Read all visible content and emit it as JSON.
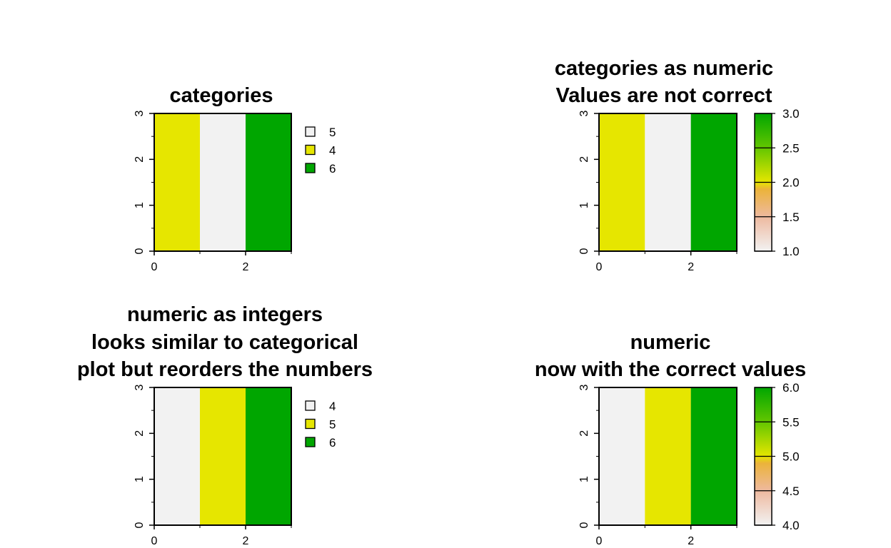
{
  "chart_data": [
    {
      "type": "heatmap",
      "panel": "top-left",
      "title_lines": [
        "categories"
      ],
      "x_ticks": [
        "0",
        "2"
      ],
      "y_ticks": [
        "0",
        "1",
        "2",
        "3"
      ],
      "xlim": [
        0,
        3
      ],
      "ylim": [
        0,
        3
      ],
      "columns": [
        {
          "x": [
            0,
            1
          ],
          "label": "4",
          "color": "#E6E600"
        },
        {
          "x": [
            1,
            2
          ],
          "label": "5",
          "color": "#F2F2F2"
        },
        {
          "x": [
            2,
            3
          ],
          "label": "6",
          "color": "#00A600"
        }
      ],
      "legend": {
        "kind": "categorical",
        "items": [
          {
            "label": "5",
            "color": "#F2F2F2"
          },
          {
            "label": "4",
            "color": "#E6E600"
          },
          {
            "label": "6",
            "color": "#00A600"
          }
        ]
      }
    },
    {
      "type": "heatmap",
      "panel": "top-right",
      "title_lines": [
        "categories as numeric",
        "Values are not correct"
      ],
      "x_ticks": [
        "0",
        "2"
      ],
      "y_ticks": [
        "0",
        "1",
        "2",
        "3"
      ],
      "xlim": [
        0,
        3
      ],
      "ylim": [
        0,
        3
      ],
      "columns": [
        {
          "x": [
            0,
            1
          ],
          "value": 2,
          "color": "#E6E600"
        },
        {
          "x": [
            1,
            2
          ],
          "value": 1,
          "color": "#F2F2F2"
        },
        {
          "x": [
            2,
            3
          ],
          "value": 3,
          "color": "#00A600"
        }
      ],
      "legend": {
        "kind": "continuous",
        "range": [
          1,
          3
        ],
        "ticks": [
          "1.0",
          "1.5",
          "2.0",
          "2.5",
          "3.0"
        ],
        "tick_values": [
          1.0,
          1.5,
          2.0,
          2.5,
          3.0
        ],
        "gradient": [
          {
            "stop": 0.0,
            "color": "#F2F2F2"
          },
          {
            "stop": 0.25,
            "color": "#EEB99F"
          },
          {
            "stop": 0.45,
            "color": "#EBB33A"
          },
          {
            "stop": 0.5,
            "color": "#E6E600"
          },
          {
            "stop": 0.75,
            "color": "#63C600"
          },
          {
            "stop": 1.0,
            "color": "#00A600"
          }
        ]
      }
    },
    {
      "type": "heatmap",
      "panel": "bottom-left",
      "title_lines": [
        "numeric as integers",
        "looks similar to categorical",
        "plot but reorders the numbers"
      ],
      "x_ticks": [
        "0",
        "2"
      ],
      "y_ticks": [
        "0",
        "1",
        "2",
        "3"
      ],
      "xlim": [
        0,
        3
      ],
      "ylim": [
        0,
        3
      ],
      "columns": [
        {
          "x": [
            0,
            1
          ],
          "label": "4",
          "color": "#F2F2F2"
        },
        {
          "x": [
            1,
            2
          ],
          "label": "5",
          "color": "#E6E600"
        },
        {
          "x": [
            2,
            3
          ],
          "label": "6",
          "color": "#00A600"
        }
      ],
      "legend": {
        "kind": "categorical",
        "items": [
          {
            "label": "4",
            "color": "#F2F2F2"
          },
          {
            "label": "5",
            "color": "#E6E600"
          },
          {
            "label": "6",
            "color": "#00A600"
          }
        ]
      }
    },
    {
      "type": "heatmap",
      "panel": "bottom-right",
      "title_lines": [
        "numeric",
        "now with the correct values"
      ],
      "x_ticks": [
        "0",
        "2"
      ],
      "y_ticks": [
        "0",
        "1",
        "2",
        "3"
      ],
      "xlim": [
        0,
        3
      ],
      "ylim": [
        0,
        3
      ],
      "columns": [
        {
          "x": [
            0,
            1
          ],
          "value": 4,
          "color": "#F2F2F2"
        },
        {
          "x": [
            1,
            2
          ],
          "value": 5,
          "color": "#E6E600"
        },
        {
          "x": [
            2,
            3
          ],
          "value": 6,
          "color": "#00A600"
        }
      ],
      "legend": {
        "kind": "continuous",
        "range": [
          4,
          6
        ],
        "ticks": [
          "4.0",
          "4.5",
          "5.0",
          "5.5",
          "6.0"
        ],
        "tick_values": [
          4.0,
          4.5,
          5.0,
          5.5,
          6.0
        ],
        "gradient": [
          {
            "stop": 0.0,
            "color": "#F2F2F2"
          },
          {
            "stop": 0.25,
            "color": "#EEB99F"
          },
          {
            "stop": 0.45,
            "color": "#EBB33A"
          },
          {
            "stop": 0.5,
            "color": "#E6E600"
          },
          {
            "stop": 0.75,
            "color": "#63C600"
          },
          {
            "stop": 1.0,
            "color": "#00A600"
          }
        ]
      }
    }
  ]
}
